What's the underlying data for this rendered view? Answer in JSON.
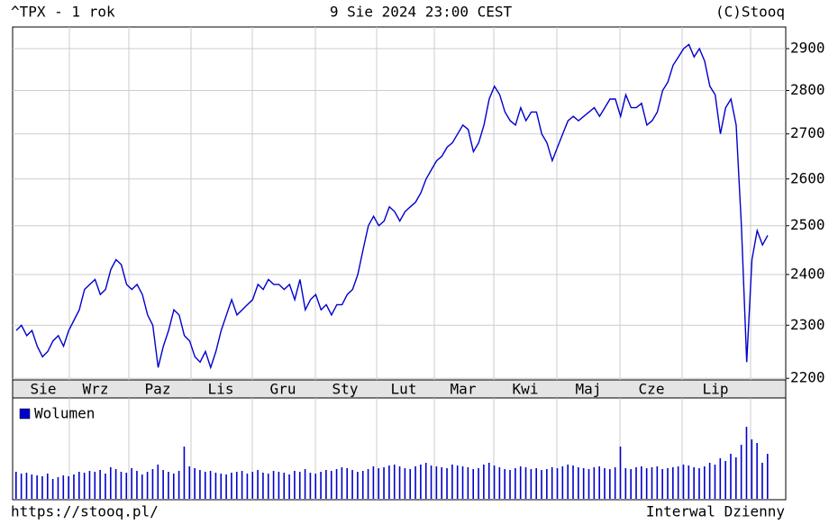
{
  "chart_data": [
    {
      "type": "line",
      "title": "^TPX - 1 rok",
      "subtitle": "9 Sie 2024 23:00 CEST",
      "credit": "(C)Stooq",
      "log_scale": true,
      "grid": true,
      "ylim": [
        2197,
        2953
      ],
      "yticks": [
        2200,
        2300,
        2400,
        2500,
        2600,
        2700,
        2800,
        2900
      ],
      "months": [
        "Sie",
        "Wrz",
        "Paz",
        "Lis",
        "Gru",
        "Sty",
        "Lut",
        "Mar",
        "Kwi",
        "Maj",
        "Cze",
        "Lip"
      ],
      "series": [
        {
          "color": "#0000cc",
          "values": [
            2290,
            2300,
            2280,
            2290,
            2260,
            2240,
            2250,
            2270,
            2280,
            2260,
            2290,
            2310,
            2330,
            2370,
            2380,
            2390,
            2360,
            2370,
            2410,
            2430,
            2420,
            2380,
            2370,
            2380,
            2360,
            2320,
            2300,
            2220,
            2260,
            2290,
            2330,
            2320,
            2280,
            2270,
            2240,
            2230,
            2250,
            2220,
            2250,
            2290,
            2320,
            2350,
            2320,
            2330,
            2340,
            2350,
            2380,
            2370,
            2390,
            2380,
            2380,
            2370,
            2380,
            2350,
            2390,
            2330,
            2350,
            2360,
            2330,
            2340,
            2320,
            2340,
            2340,
            2360,
            2370,
            2400,
            2450,
            2500,
            2520,
            2500,
            2510,
            2540,
            2530,
            2510,
            2530,
            2540,
            2550,
            2570,
            2600,
            2620,
            2640,
            2650,
            2670,
            2680,
            2700,
            2720,
            2710,
            2660,
            2680,
            2720,
            2780,
            2810,
            2790,
            2750,
            2730,
            2720,
            2760,
            2730,
            2750,
            2750,
            2700,
            2680,
            2640,
            2670,
            2700,
            2730,
            2740,
            2730,
            2740,
            2750,
            2760,
            2740,
            2760,
            2780,
            2780,
            2740,
            2790,
            2760,
            2760,
            2770,
            2720,
            2730,
            2750,
            2800,
            2820,
            2860,
            2880,
            2900,
            2910,
            2880,
            2900,
            2870,
            2810,
            2790,
            2700,
            2760,
            2780,
            2720,
            2500,
            2230,
            2430,
            2490,
            2460,
            2480
          ]
        }
      ]
    },
    {
      "type": "bar",
      "series": [
        {
          "name": "Wolumen",
          "color": "#0000cc",
          "values": [
            30,
            28,
            29,
            27,
            26,
            25,
            28,
            22,
            24,
            26,
            25,
            27,
            30,
            29,
            31,
            30,
            32,
            28,
            35,
            33,
            30,
            29,
            34,
            31,
            27,
            30,
            33,
            38,
            32,
            30,
            28,
            31,
            58,
            36,
            34,
            32,
            30,
            31,
            29,
            28,
            27,
            29,
            30,
            31,
            28,
            30,
            32,
            29,
            28,
            31,
            30,
            29,
            27,
            31,
            30,
            33,
            29,
            28,
            30,
            32,
            31,
            33,
            35,
            34,
            32,
            30,
            31,
            33,
            36,
            34,
            35,
            37,
            38,
            36,
            34,
            33,
            36,
            38,
            40,
            37,
            36,
            35,
            34,
            38,
            37,
            36,
            35,
            33,
            34,
            38,
            40,
            37,
            35,
            33,
            32,
            34,
            36,
            35,
            33,
            34,
            32,
            33,
            35,
            34,
            36,
            38,
            37,
            35,
            34,
            33,
            35,
            36,
            34,
            33,
            35,
            58,
            34,
            33,
            35,
            36,
            34,
            35,
            36,
            33,
            34,
            35,
            36,
            38,
            37,
            35,
            34,
            36,
            40,
            38,
            45,
            42,
            50,
            46,
            60,
            80,
            66,
            62,
            40,
            50
          ]
        }
      ],
      "source": "https://stooq.pl/",
      "interval": "Interwal Dzienny"
    }
  ]
}
